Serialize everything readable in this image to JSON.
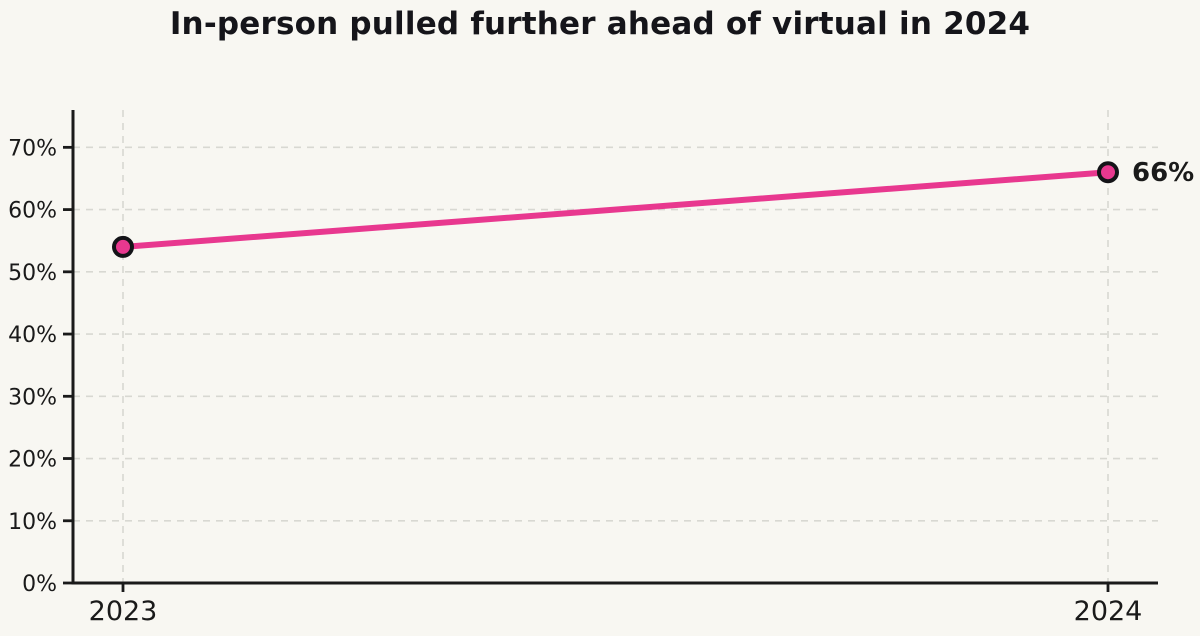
{
  "chart_data": {
    "type": "line",
    "title": "In-person pulled further ahead of virtual in 2024",
    "categories": [
      "2023",
      "2024"
    ],
    "series": [
      {
        "name": "In-person",
        "values": [
          54,
          66
        ]
      }
    ],
    "point_labels": [
      "",
      "66%"
    ],
    "xlabel": "",
    "ylabel": "",
    "ylim": [
      0,
      76
    ],
    "yticks": [
      0,
      10,
      20,
      30,
      40,
      50,
      60,
      70
    ],
    "ytick_labels": [
      "0%",
      "10%",
      "20%",
      "30%",
      "40%",
      "50%",
      "60%",
      "70%"
    ],
    "grid": true,
    "grid_style": "dashed",
    "legend_position": "none",
    "colors": {
      "line": "#e8388f",
      "marker_fill": "#e8388f",
      "marker_edge": "#141418",
      "grid": "#d8d8d2",
      "axis": "#1a1a1a",
      "text": "#1a1a1a",
      "background": "#f8f7f2"
    }
  }
}
